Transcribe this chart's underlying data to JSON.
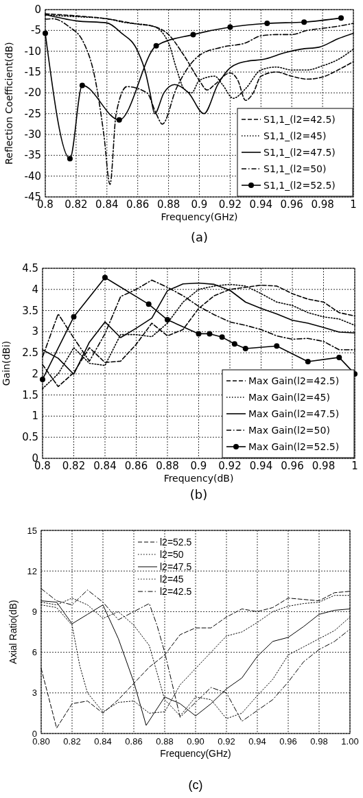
{
  "chart_data": [
    {
      "type": "line",
      "xlabel": "Frequency(GHz)",
      "ylabel": "Reflection Coefficient(dB)",
      "xlim": [
        0.8,
        1
      ],
      "ylim": [
        -45,
        0
      ],
      "xticks": [
        0.8,
        0.82,
        0.84,
        0.86,
        0.88,
        0.9,
        0.92,
        0.94,
        0.96,
        0.98,
        1
      ],
      "yticks": [
        -45,
        -40,
        -35,
        -30,
        -25,
        -20,
        -15,
        -10,
        -5,
        0
      ],
      "grid": true,
      "legend": "bottom right",
      "annotations": [
        "(a)"
      ],
      "series": [
        {
          "name": "S1,1_(l2=42.5)",
          "color": "#000000",
          "line_style": "dashed",
          "x": [
            0.8,
            0.82,
            0.84,
            0.86,
            0.87,
            0.88,
            0.89,
            0.9,
            0.905,
            0.91,
            0.92,
            0.925,
            0.93,
            0.935,
            0.94,
            0.95,
            0.96,
            0.97,
            0.98,
            0.99,
            1.0
          ],
          "values": [
            -1,
            -1.5,
            -2.2,
            -3.5,
            -4,
            -6,
            -11,
            -17,
            -19.3,
            -18,
            -15.2,
            -17,
            -21.8,
            -20,
            -16,
            -15,
            -16,
            -16.7,
            -16.2,
            -14.5,
            -12.5
          ]
        },
        {
          "name": "S1,1_(l2=45)",
          "color": "#000000",
          "line_style": "dotted",
          "x": [
            0.8,
            0.82,
            0.84,
            0.85,
            0.87,
            0.88,
            0.885,
            0.89,
            0.895,
            0.9,
            0.91,
            0.915,
            0.922,
            0.93,
            0.94,
            0.95,
            0.96,
            0.97,
            0.98,
            0.99,
            1.0
          ],
          "values": [
            -1.3,
            -1.7,
            -2.2,
            -3,
            -4,
            -8,
            -14,
            -19,
            -20,
            -17,
            -16,
            -18,
            -21.3,
            -19,
            -14.5,
            -13.8,
            -14.5,
            -14.5,
            -13.5,
            -12,
            -9.5
          ]
        },
        {
          "name": "S1,1_(l2=47.5)",
          "color": "#000000",
          "line_style": "solid",
          "x": [
            0.8,
            0.82,
            0.84,
            0.849,
            0.86,
            0.865,
            0.868,
            0.871,
            0.877,
            0.884,
            0.893,
            0.903,
            0.912,
            0.92,
            0.931,
            0.941,
            0.956,
            0.966,
            0.978,
            0.99,
            1.0
          ],
          "values": [
            -1.2,
            -2.7,
            -3.2,
            -5.5,
            -10,
            -15,
            -20,
            -25,
            -20,
            -18,
            -20,
            -25,
            -18,
            -14,
            -12.4,
            -12,
            -10.3,
            -9.5,
            -9,
            -7,
            -5.7
          ]
        },
        {
          "name": "S1,1_(l2=50)",
          "color": "#000000",
          "line_style": "dashdot",
          "x": [
            0.8,
            0.805,
            0.815,
            0.825,
            0.832,
            0.838,
            0.842,
            0.846,
            0.853,
            0.866,
            0.872,
            0.876,
            0.885,
            0.9,
            0.915,
            0.93,
            0.94,
            0.95,
            0.96,
            0.97,
            0.98,
            0.99,
            1.0
          ],
          "values": [
            -2.3,
            -2.2,
            -4,
            -8,
            -16,
            -30,
            -42,
            -25,
            -18.5,
            -20,
            -25,
            -27.5,
            -19,
            -11,
            -9,
            -8,
            -6.3,
            -6,
            -6,
            -5,
            -4.5,
            -4,
            -3.3
          ]
        },
        {
          "name": "S1,1_(l2=52.5)",
          "color": "#000000",
          "line_style": "solid",
          "marker": "circle",
          "x": [
            0.8,
            0.816,
            0.824,
            0.848,
            0.872,
            0.896,
            0.92,
            0.944,
            0.968,
            0.992
          ],
          "values": [
            -5.7,
            -35.8,
            -18.2,
            -26.5,
            -8.7,
            -6,
            -4.2,
            -3.3,
            -3,
            -2
          ]
        }
      ]
    },
    {
      "type": "line",
      "xlabel": "Frequency(dB)",
      "ylabel": "Gain(dBi)",
      "xlim": [
        0.8,
        1
      ],
      "ylim": [
        0,
        4.5
      ],
      "xticks": [
        0.8,
        0.82,
        0.84,
        0.86,
        0.88,
        0.9,
        0.92,
        0.94,
        0.96,
        0.98,
        1
      ],
      "yticks": [
        0,
        0.5,
        1,
        1.5,
        2,
        2.5,
        3,
        3.5,
        4,
        4.5
      ],
      "grid": true,
      "legend": "bottom right",
      "annotations": [
        "(b)"
      ],
      "series": [
        {
          "name": "Max Gain(l2=42.5)",
          "color": "#000000",
          "line_style": "dashed",
          "x": [
            0.8,
            0.81,
            0.82,
            0.83,
            0.84,
            0.85,
            0.86,
            0.87,
            0.88,
            0.89,
            0.9,
            0.91,
            0.92,
            0.93,
            0.94,
            0.95,
            0.96,
            0.97,
            0.98,
            0.99,
            1.0
          ],
          "values": [
            2.22,
            1.7,
            2.03,
            2.62,
            2.27,
            2.3,
            2.7,
            3.2,
            2.9,
            3.05,
            3.55,
            3.85,
            4.0,
            4.05,
            4.1,
            4.08,
            3.9,
            3.77,
            3.7,
            3.45,
            3.37
          ]
        },
        {
          "name": "Max Gain(l2=45)",
          "color": "#000000",
          "line_style": "dotted",
          "x": [
            0.8,
            0.81,
            0.82,
            0.83,
            0.84,
            0.85,
            0.86,
            0.87,
            0.88,
            0.89,
            0.9,
            0.91,
            0.92,
            0.93,
            0.94,
            0.95,
            0.96,
            0.97,
            0.98,
            0.99,
            1.0
          ],
          "values": [
            1.65,
            2.0,
            2.62,
            2.25,
            2.2,
            2.93,
            2.93,
            2.88,
            3.2,
            3.7,
            4.0,
            4.08,
            4.12,
            4.08,
            3.9,
            3.7,
            3.62,
            3.45,
            3.35,
            3.3,
            3.15
          ]
        },
        {
          "name": "Max Gain(l2=47.5)",
          "color": "#000000",
          "line_style": "solid",
          "x": [
            0.8,
            0.81,
            0.82,
            0.83,
            0.84,
            0.85,
            0.86,
            0.87,
            0.88,
            0.89,
            0.9,
            0.91,
            0.92,
            0.93,
            0.94,
            0.95,
            0.96,
            0.97,
            0.98,
            0.99,
            1.0
          ],
          "values": [
            2.57,
            2.37,
            1.99,
            2.75,
            3.23,
            2.86,
            3.08,
            3.32,
            3.97,
            4.13,
            4.15,
            4.12,
            3.98,
            3.7,
            3.55,
            3.42,
            3.27,
            3.2,
            3.1,
            2.99,
            2.97
          ]
        },
        {
          "name": "Max Gain(l2=50)",
          "color": "#000000",
          "line_style": "dashdot",
          "x": [
            0.8,
            0.81,
            0.82,
            0.83,
            0.84,
            0.85,
            0.86,
            0.87,
            0.88,
            0.89,
            0.9,
            0.91,
            0.92,
            0.93,
            0.94,
            0.95,
            0.96,
            0.97,
            0.98,
            0.99,
            1.0
          ],
          "values": [
            2.4,
            3.42,
            2.85,
            2.3,
            2.95,
            3.83,
            4.0,
            4.22,
            4.05,
            3.85,
            3.6,
            3.4,
            3.23,
            3.15,
            3.05,
            2.9,
            2.82,
            2.84,
            2.77,
            2.57,
            2.57
          ]
        },
        {
          "name": "Max Gain(l2=52.5)",
          "color": "#000000",
          "line_style": "solid",
          "marker": "circle",
          "x": [
            0.8,
            0.82,
            0.84,
            0.868,
            0.88,
            0.9,
            0.907,
            0.915,
            0.923,
            0.93,
            0.95,
            0.97,
            0.99,
            1.0
          ],
          "values": [
            1.87,
            3.35,
            4.28,
            3.65,
            3.28,
            2.95,
            2.95,
            2.87,
            2.71,
            2.6,
            2.66,
            2.29,
            2.39,
            2.0
          ]
        }
      ]
    },
    {
      "type": "line",
      "xlabel": "Frequency(GHz)",
      "ylabel": "Axial Ratio(dB)",
      "xlim": [
        0.8,
        1
      ],
      "ylim": [
        0,
        15
      ],
      "xticks": [
        {
          "value": 0.8,
          "label": "0.80"
        },
        {
          "value": 0.82,
          "label": "0.82"
        },
        {
          "value": 0.84,
          "label": "0.84"
        },
        {
          "value": 0.86,
          "label": "0.86"
        },
        {
          "value": 0.88,
          "label": "0.88"
        },
        {
          "value": 0.9,
          "label": "0.90"
        },
        {
          "value": 0.92,
          "label": "0.92"
        },
        {
          "value": 0.94,
          "label": "0.94"
        },
        {
          "value": 0.96,
          "label": "0.96"
        },
        {
          "value": 0.98,
          "label": "0.98"
        },
        {
          "value": 1,
          "label": "1.00"
        }
      ],
      "yticks": [
        0,
        3,
        6,
        9,
        12,
        15
      ],
      "grid": true,
      "legend": "top",
      "annotations": [
        "(c)"
      ],
      "series": [
        {
          "name": "l2=52.5",
          "color": "#000000",
          "line_style": "dashed",
          "x": [
            0.8,
            0.81,
            0.82,
            0.83,
            0.84,
            0.85,
            0.86,
            0.87,
            0.88,
            0.89,
            0.9,
            0.91,
            0.92,
            0.93,
            0.94,
            0.95,
            0.96,
            0.97,
            0.98,
            0.99,
            1.0
          ],
          "values": [
            4.8,
            0.4,
            2.2,
            2.4,
            1.5,
            2.5,
            3.7,
            4.9,
            5.8,
            7.3,
            7.8,
            7.8,
            8.6,
            9.2,
            9.0,
            9.3,
            10.0,
            9.9,
            9.8,
            10.4,
            10.5
          ]
        },
        {
          "name": "l2=50",
          "color": "#000000",
          "line_style": "dotted",
          "x": [
            0.8,
            0.81,
            0.82,
            0.825,
            0.83,
            0.84,
            0.85,
            0.86,
            0.87,
            0.88,
            0.89,
            0.9,
            0.91,
            0.92,
            0.93,
            0.94,
            0.95,
            0.96,
            0.97,
            0.98,
            0.99,
            1.0
          ],
          "values": [
            9.5,
            9.3,
            8.0,
            5,
            3,
            1.6,
            2.3,
            2.4,
            1.5,
            1.6,
            3.6,
            4.8,
            6,
            7.2,
            7.5,
            8.2,
            9,
            9.4,
            9.6,
            9.7,
            10.2,
            10.2
          ]
        },
        {
          "name": "l2=47.5",
          "color": "#000000",
          "line_style": "solid",
          "x": [
            0.8,
            0.81,
            0.82,
            0.83,
            0.84,
            0.85,
            0.86,
            0.868,
            0.88,
            0.89,
            0.9,
            0.91,
            0.92,
            0.93,
            0.94,
            0.95,
            0.96,
            0.97,
            0.98,
            0.99,
            1.0
          ],
          "values": [
            9.8,
            9.7,
            8.1,
            8.8,
            9.5,
            7,
            3.8,
            0.6,
            2.7,
            2.2,
            1.3,
            2.2,
            3.3,
            4.1,
            5.7,
            6.8,
            7.1,
            7.9,
            8.8,
            9.1,
            9.2
          ]
        },
        {
          "name": "l2=45",
          "color": "#000000",
          "line_style": "dotted",
          "x": [
            0.8,
            0.81,
            0.82,
            0.83,
            0.84,
            0.85,
            0.86,
            0.87,
            0.88,
            0.89,
            0.9,
            0.91,
            0.92,
            0.93,
            0.94,
            0.95,
            0.96,
            0.97,
            0.98,
            0.99,
            1.0
          ],
          "values": [
            9.7,
            9.5,
            10,
            9.5,
            8.5,
            9.0,
            8.0,
            6.5,
            2.5,
            1.3,
            2.7,
            2.5,
            1.1,
            1.5,
            2.8,
            4.0,
            5.8,
            6.4,
            7.0,
            7.6,
            8.6
          ]
        },
        {
          "name": "l2=42.5",
          "color": "#000000",
          "line_style": "dashdot",
          "x": [
            0.8,
            0.81,
            0.82,
            0.83,
            0.84,
            0.85,
            0.86,
            0.87,
            0.875,
            0.88,
            0.89,
            0.9,
            0.91,
            0.92,
            0.93,
            0.94,
            0.95,
            0.96,
            0.97,
            0.98,
            0.99,
            1.0
          ],
          "values": [
            10.7,
            9.8,
            9.5,
            10.6,
            9.7,
            8.4,
            9,
            9.6,
            8,
            6,
            1.2,
            2.3,
            3.4,
            3.0,
            0.9,
            1.7,
            2.5,
            3.8,
            5.3,
            6.2,
            6.8,
            7.7
          ]
        }
      ]
    }
  ]
}
